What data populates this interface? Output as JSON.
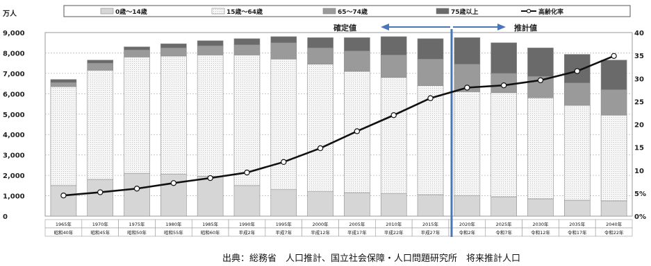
{
  "chart_data": {
    "type": "bar",
    "stacked": true,
    "left_unit": "万人",
    "left_ylim": [
      0,
      9000
    ],
    "left_ticks": [
      "0",
      "1,000",
      "2,000",
      "3,000",
      "4,000",
      "5,000",
      "6,000",
      "7,000",
      "8,000",
      "9,000"
    ],
    "right_ylim": [
      0,
      40
    ],
    "right_ticks": [
      "0%",
      "5%",
      "10",
      "15",
      "20",
      "25",
      "30",
      "35",
      "40"
    ],
    "categories": [
      [
        "1965年",
        "昭和40年"
      ],
      [
        "1970年",
        "昭和45年"
      ],
      [
        "1975年",
        "昭和50年"
      ],
      [
        "1980年",
        "昭和55年"
      ],
      [
        "1985年",
        "昭和60年"
      ],
      [
        "1990年",
        "平成2年"
      ],
      [
        "1995年",
        "平成7年"
      ],
      [
        "2000年",
        "平成12年"
      ],
      [
        "2005年",
        "平成17年"
      ],
      [
        "2010年",
        "平成22年"
      ],
      [
        "2015年",
        "平成27年"
      ],
      [
        "2020年",
        "令和2年"
      ],
      [
        "2025年",
        "令和7年"
      ],
      [
        "2030年",
        "令和12年"
      ],
      [
        "2035年",
        "令和17年"
      ],
      [
        "2040年",
        "令和22年"
      ]
    ],
    "series": [
      {
        "name": "0歳～14歳",
        "values": [
          1500,
          1800,
          2100,
          2050,
          1950,
          1500,
          1300,
          1200,
          1150,
          1100,
          1050,
          1000,
          950,
          850,
          780,
          750
        ],
        "fill": "#d6d6d6"
      },
      {
        "name": "15歳～64歳",
        "values": [
          4850,
          5350,
          5700,
          5800,
          5950,
          6400,
          6400,
          6250,
          5950,
          5700,
          5350,
          5100,
          5100,
          4950,
          4650,
          4200
        ],
        "fill": "#f4f4f4"
      },
      {
        "name": "65～74歳",
        "values": [
          200,
          350,
          350,
          400,
          450,
          500,
          800,
          800,
          1000,
          1100,
          1300,
          1350,
          950,
          1050,
          1100,
          1250
        ],
        "fill": "#9a9a9a"
      },
      {
        "name": "75歳以上",
        "values": [
          150,
          150,
          150,
          200,
          250,
          300,
          300,
          500,
          650,
          900,
          1000,
          1300,
          1500,
          1400,
          1400,
          1450
        ],
        "fill": "#6a6a6a"
      }
    ],
    "line": {
      "name": "高齢化率",
      "values": [
        4.5,
        5.2,
        6.0,
        7.2,
        8.3,
        9.5,
        11.8,
        14.8,
        18.5,
        22.0,
        25.7,
        28.0,
        28.5,
        29.6,
        31.6,
        34.9
      ]
    },
    "annotations": {
      "left": "確定値",
      "right": "推計値"
    }
  },
  "source_text": "出典：総務省　人口推計、国立社会保障・人口問題研究所　将来推計人口"
}
